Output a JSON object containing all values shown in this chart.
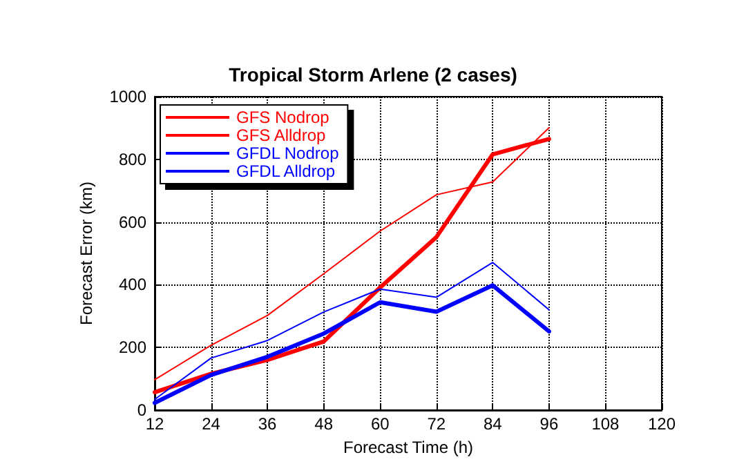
{
  "chart_data": {
    "type": "line",
    "title": "Tropical Storm Arlene (2 cases)",
    "xlabel": "Forecast Time (h)",
    "ylabel": "Forecast Error (km)",
    "x": [
      12,
      24,
      36,
      48,
      60,
      72,
      84,
      96
    ],
    "series": [
      {
        "name": "GFS Nodrop",
        "color": "#ff0000",
        "values": [
          97,
          207,
          302,
          435,
          571,
          687,
          728,
          901
        ]
      },
      {
        "name": "GFS Alldrop",
        "color": "#ff0000",
        "values": [
          57,
          116,
          160,
          219,
          391,
          552,
          816,
          865
        ]
      },
      {
        "name": "GFDL Nodrop",
        "color": "#0000ff",
        "values": [
          34,
          166,
          222,
          313,
          386,
          360,
          471,
          320
        ]
      },
      {
        "name": "GFDL Alldrop",
        "color": "#0000ff",
        "values": [
          23,
          112,
          170,
          244,
          344,
          314,
          398,
          251
        ]
      }
    ],
    "xlim": [
      12,
      120
    ],
    "xticks": [
      12,
      24,
      36,
      48,
      60,
      72,
      84,
      96,
      108,
      120
    ],
    "ylim": [
      0,
      1000
    ],
    "yticks": [
      0,
      200,
      400,
      600,
      800,
      1000
    ],
    "grid": true,
    "legend": "top left",
    "marker": "none",
    "line_style": "solid"
  }
}
